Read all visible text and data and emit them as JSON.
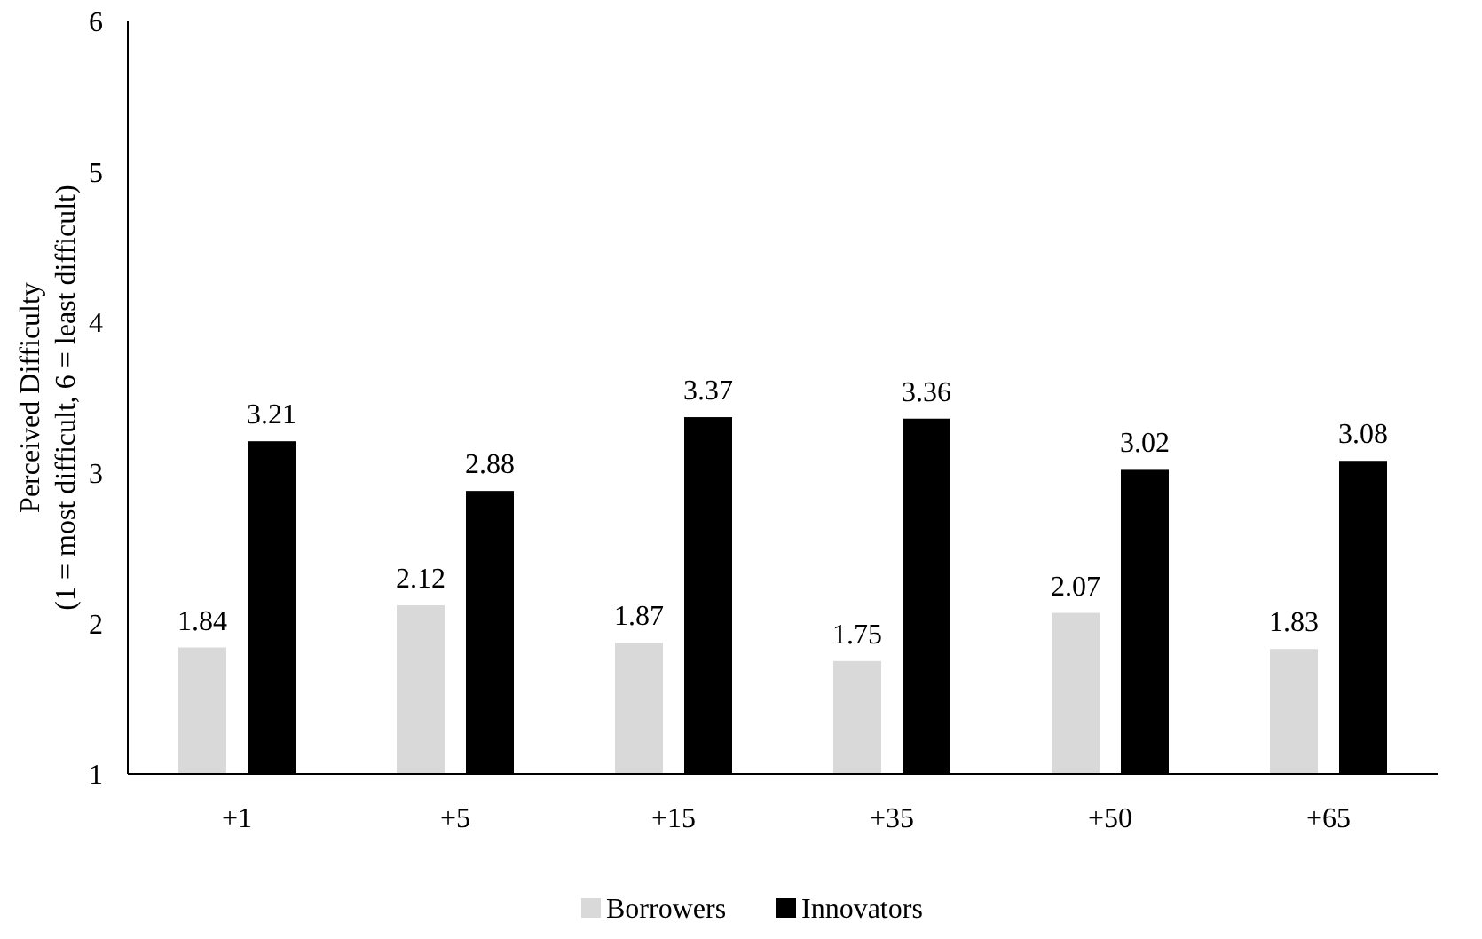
{
  "chart_data": {
    "type": "bar",
    "ylabel": "Perceived Difficulty\n(1 = most difficult, 6 = least difficult)",
    "categories": [
      "+1",
      "+5",
      "+15",
      "+35",
      "+50",
      "+65"
    ],
    "series": [
      {
        "name": "Borrowers",
        "color": "#d9d9d9",
        "values": [
          1.84,
          2.12,
          1.87,
          1.75,
          2.07,
          1.83
        ]
      },
      {
        "name": "Innovators",
        "color": "#000000",
        "values": [
          3.21,
          2.88,
          3.37,
          3.36,
          3.02,
          3.08
        ]
      }
    ],
    "ylim": [
      1,
      6
    ],
    "yticks": [
      1,
      2,
      3,
      4,
      5,
      6
    ],
    "grid": false,
    "legend": "bottom",
    "data_labels": true
  }
}
